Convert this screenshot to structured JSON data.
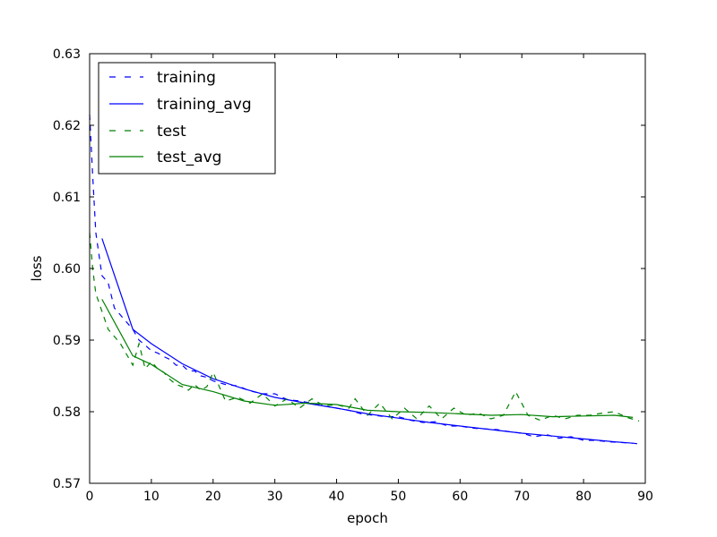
{
  "chart_data": {
    "type": "line",
    "title": "",
    "xlabel": "epoch",
    "ylabel": "loss",
    "xlim": [
      0,
      90
    ],
    "ylim": [
      0.57,
      0.63
    ],
    "xticks": [
      "0",
      "10",
      "20",
      "30",
      "40",
      "50",
      "60",
      "70",
      "80",
      "90"
    ],
    "yticks": [
      "0.57",
      "0.58",
      "0.59",
      "0.60",
      "0.61",
      "0.62",
      "0.63"
    ],
    "grid": false,
    "legend_position": "top-left",
    "series": [
      {
        "name": "training",
        "style": "dashed",
        "color": "#0000ff",
        "x": [
          0,
          0.5,
          1,
          2,
          3,
          4,
          5,
          6,
          7,
          8,
          9,
          10,
          11,
          12,
          13,
          14,
          15,
          16,
          17,
          18,
          19,
          20,
          22,
          24,
          26,
          28,
          30,
          32,
          34,
          36,
          38,
          40,
          42,
          44,
          46,
          48,
          50,
          52,
          54,
          56,
          58,
          60,
          62,
          64,
          66,
          68,
          70,
          72,
          74,
          76,
          78,
          80,
          82,
          84,
          86,
          88,
          89
        ],
        "y": [
          0.6215,
          0.613,
          0.605,
          0.599,
          0.598,
          0.5945,
          0.5935,
          0.5925,
          0.5915,
          0.59,
          0.5893,
          0.5885,
          0.5882,
          0.5877,
          0.5873,
          0.5865,
          0.5865,
          0.5857,
          0.5857,
          0.585,
          0.5848,
          0.5843,
          0.5838,
          0.5836,
          0.5829,
          0.5825,
          0.5825,
          0.5817,
          0.5815,
          0.5812,
          0.5808,
          0.5805,
          0.5802,
          0.5797,
          0.5795,
          0.5793,
          0.5793,
          0.5788,
          0.5785,
          0.5786,
          0.578,
          0.578,
          0.5777,
          0.5776,
          0.5775,
          0.5772,
          0.577,
          0.5765,
          0.5768,
          0.5763,
          0.5765,
          0.576,
          0.576,
          0.5758,
          0.5757,
          0.5756,
          0.5755
        ]
      },
      {
        "name": "training_avg",
        "style": "solid",
        "color": "#0000ff",
        "x": [
          2,
          7,
          10,
          15,
          20,
          25,
          30,
          35,
          40,
          45,
          50,
          55,
          60,
          65,
          70,
          75,
          80,
          85,
          88
        ],
        "y": [
          0.6042,
          0.5915,
          0.5895,
          0.5867,
          0.5846,
          0.5832,
          0.582,
          0.5812,
          0.5805,
          0.5797,
          0.5791,
          0.5785,
          0.578,
          0.5775,
          0.577,
          0.5766,
          0.5762,
          0.5758,
          0.5756
        ]
      },
      {
        "name": "test",
        "style": "dashed",
        "color": "#008000",
        "x": [
          0,
          0.5,
          1,
          2,
          3,
          4,
          5,
          6,
          7,
          8,
          9,
          10,
          11,
          12,
          13,
          14,
          15,
          16,
          17,
          18,
          19,
          20,
          22,
          24,
          26,
          28,
          30,
          32,
          34,
          36,
          38,
          40,
          42,
          43,
          45,
          47,
          49,
          51,
          53,
          55,
          57,
          59,
          61,
          63,
          65,
          67,
          69,
          71,
          73,
          75,
          77,
          79,
          81,
          83,
          85,
          87,
          89
        ],
        "y": [
          0.605,
          0.6,
          0.5965,
          0.594,
          0.5915,
          0.5905,
          0.5895,
          0.588,
          0.5865,
          0.5895,
          0.586,
          0.587,
          0.586,
          0.5855,
          0.5845,
          0.5838,
          0.5835,
          0.583,
          0.5838,
          0.583,
          0.5835,
          0.5855,
          0.5815,
          0.582,
          0.5812,
          0.5825,
          0.5808,
          0.5818,
          0.5805,
          0.5818,
          0.5808,
          0.581,
          0.5805,
          0.5818,
          0.5795,
          0.5812,
          0.579,
          0.5805,
          0.579,
          0.5808,
          0.579,
          0.5805,
          0.5795,
          0.5798,
          0.579,
          0.5795,
          0.5828,
          0.5795,
          0.5788,
          0.5795,
          0.579,
          0.5795,
          0.5795,
          0.5798,
          0.58,
          0.5792,
          0.5787
        ]
      },
      {
        "name": "test_avg",
        "style": "solid",
        "color": "#008000",
        "x": [
          2,
          7,
          10,
          15,
          20,
          25,
          30,
          35,
          40,
          45,
          50,
          55,
          60,
          65,
          70,
          75,
          80,
          85,
          88
        ],
        "y": [
          0.5957,
          0.5878,
          0.5866,
          0.5838,
          0.5828,
          0.5815,
          0.5809,
          0.5812,
          0.581,
          0.5802,
          0.58,
          0.5799,
          0.5797,
          0.5795,
          0.5796,
          0.5793,
          0.5794,
          0.5795,
          0.5792
        ]
      }
    ]
  }
}
